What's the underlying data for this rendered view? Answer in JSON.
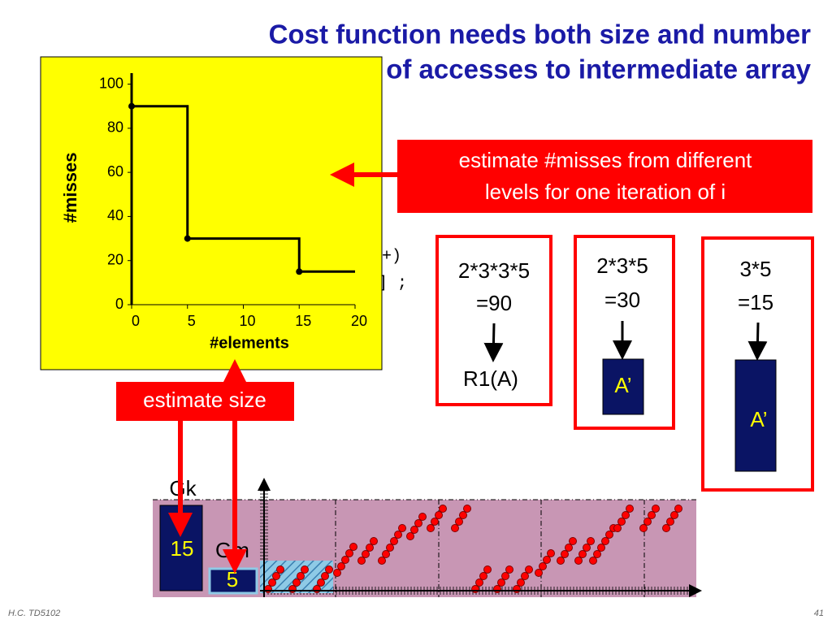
{
  "header": {
    "title_lines": [
      "Cost function needs both size and number",
      "of accesses to intermediate array"
    ]
  },
  "code_fragments": [
    "+)",
    "] ;"
  ],
  "chart_data": {
    "type": "line",
    "step": "post",
    "x": [
      0,
      5,
      15
    ],
    "values": [
      90,
      30,
      15
    ],
    "xlabel": "#elements",
    "ylabel": "#misses",
    "xlim": [
      0,
      20
    ],
    "ylim": [
      0,
      105
    ],
    "xticks": [
      0,
      5,
      10,
      15,
      20
    ],
    "yticks": [
      0,
      20,
      40,
      60,
      80,
      100
    ],
    "color": "#000000",
    "background": "#ffff00"
  },
  "callouts": {
    "misses": [
      "estimate #misses from different",
      "levels for one iteration of i"
    ],
    "size": "estimate size"
  },
  "levels": [
    {
      "lines": [
        "2*3*3*5",
        "=90"
      ],
      "target": "R1(A)"
    },
    {
      "lines": [
        "2*3*5",
        "=30"
      ],
      "target": "A’"
    },
    {
      "lines": [
        "3*5",
        "=15"
      ],
      "target": "A’"
    }
  ],
  "diagram": {
    "gk_label": "Gk",
    "gk_value": "15",
    "gm_label": "Gm",
    "gm_value": "5"
  },
  "footer": {
    "left": "H.C.   TD5102",
    "page": "41"
  }
}
